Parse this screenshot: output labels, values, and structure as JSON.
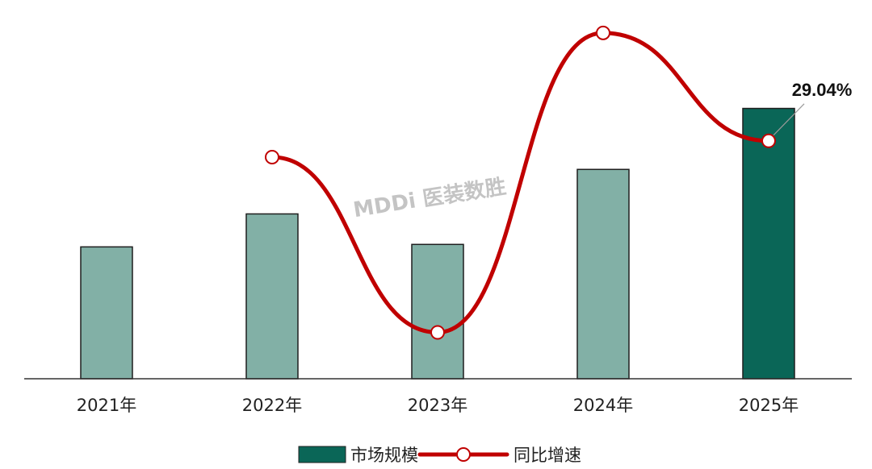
{
  "chart_data": {
    "type": "bar",
    "categories": [
      "2021年",
      "2022年",
      "2023年",
      "2024年",
      "2025年"
    ],
    "series": [
      {
        "name": "市场规模",
        "kind": "bar",
        "values": [
          1.6,
          2.0,
          1.63,
          2.54,
          3.28
        ],
        "colors": [
          "#82b0a6",
          "#82b0a6",
          "#82b0a6",
          "#82b0a6",
          "#0a6657"
        ],
        "highlight_index": 4
      },
      {
        "name": "同比增速",
        "kind": "line",
        "smooth": true,
        "values": [
          null,
          0.25,
          -0.185,
          0.5583,
          0.2904
        ],
        "color": "#c00000",
        "marker": "hollow-circle"
      }
    ],
    "data_labels": [
      {
        "series": "同比增速",
        "category": "2025年",
        "text": "29.04%"
      }
    ],
    "axes": {
      "x": {
        "show_axis_line": true
      },
      "y_bar": {
        "show": false,
        "min": 0,
        "max": 4.4
      },
      "y_line": {
        "show": false,
        "min": -0.3,
        "max": 0.6
      }
    },
    "grid": false,
    "legend": {
      "position": "bottom-center",
      "items": [
        {
          "label": "市场规模",
          "symbol": "bar",
          "color": "#0a6657"
        },
        {
          "label": "同比增速",
          "symbol": "line-marker",
          "color": "#c00000"
        }
      ]
    },
    "watermark": {
      "text": "MDDi 医装数胜"
    }
  }
}
